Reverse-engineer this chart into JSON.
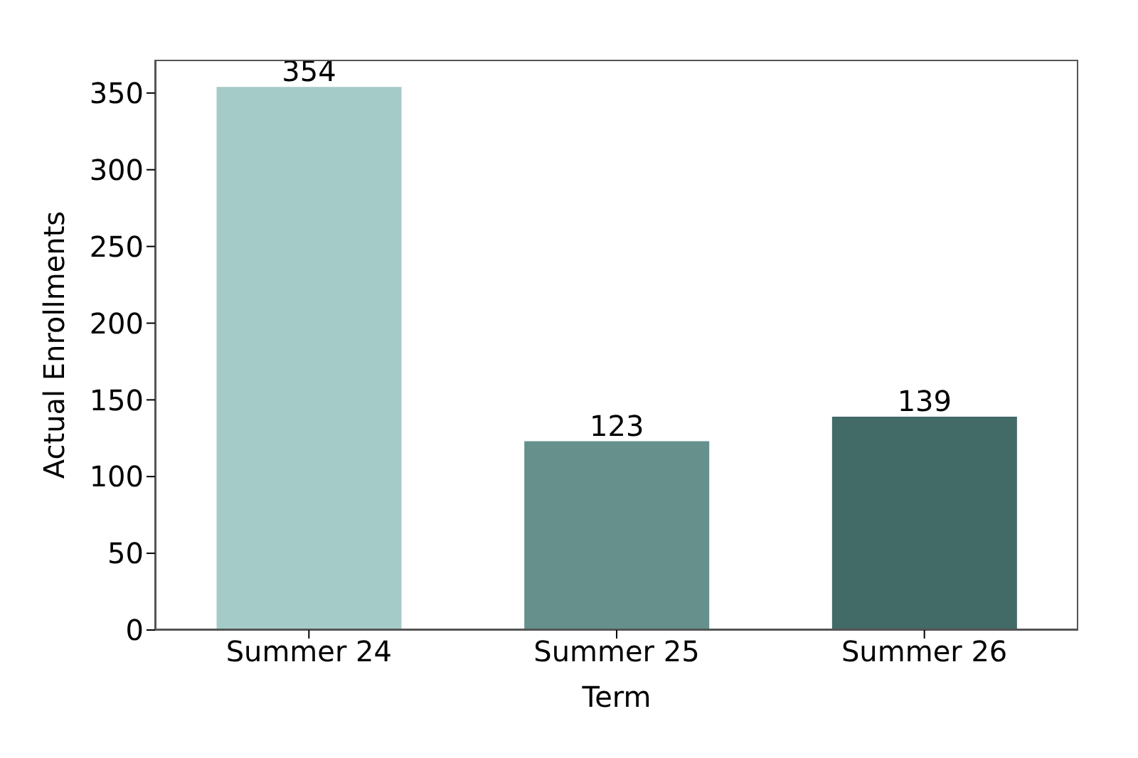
{
  "chart_data": {
    "type": "bar",
    "xlabel": "Term",
    "ylabel": "Actual Enrollments",
    "categories": [
      "Summer 24",
      "Summer 25",
      "Summer 26"
    ],
    "values": [
      354,
      123,
      139
    ],
    "colors": [
      "#a5cbc8",
      "#65908c",
      "#426a67"
    ],
    "ylim": [
      0,
      371.7
    ],
    "yticks": [
      0,
      50,
      100,
      150,
      200,
      250,
      300,
      350
    ],
    "data_labels": true,
    "grid": false,
    "legend": false
  }
}
